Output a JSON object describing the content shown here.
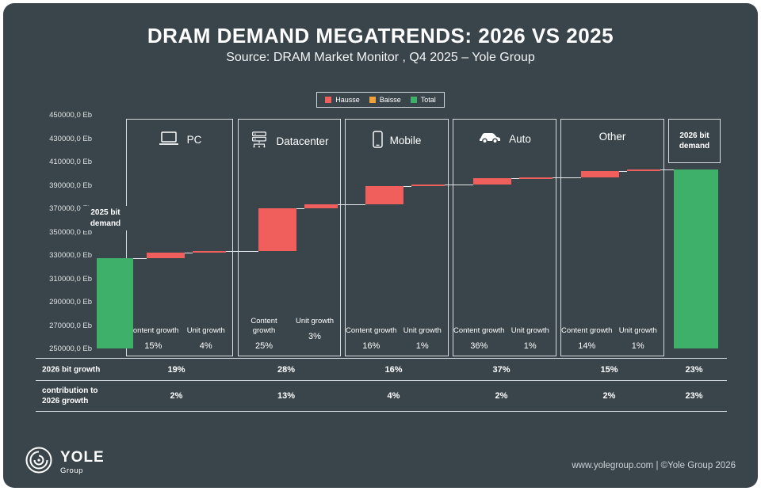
{
  "header": {
    "title": "DRAM DEMAND MEGATRENDS: 2026 VS 2025",
    "subtitle": "Source: DRAM Market Monitor , Q4 2025 – Yole Group"
  },
  "legend": {
    "items": [
      {
        "label": "Hausse",
        "color": "#f15f5c"
      },
      {
        "label": "Baisse",
        "color": "#f0a139"
      },
      {
        "label": "Total",
        "color": "#3eb06a"
      }
    ]
  },
  "chart_data": {
    "type": "waterfall",
    "unit": "Eb",
    "ylim": [
      250000,
      450000
    ],
    "ytick_step": 20000,
    "ytick_labels": [
      "450000,0 Eb",
      "430000,0 Eb",
      "410000,0 Eb",
      "390000,0 Eb",
      "370000,0 Eb",
      "350000,0 Eb",
      "330000,0 Eb",
      "310000,0 Eb",
      "290000,0 Eb",
      "270000,0 Eb",
      "250000,0 Eb"
    ],
    "colors": {
      "hausse": "#f15f5c",
      "baisse": "#f0a139",
      "total": "#3eb06a"
    },
    "start_bar": {
      "label": "2025 bit demand",
      "value_eb": 327000
    },
    "end_bar": {
      "label": "2026 bit demand",
      "value_eb": 403200
    },
    "categories": [
      {
        "name": "PC",
        "icon": "laptop-icon",
        "content_growth": "15%",
        "unit_growth": "4%",
        "content_step": [
          327000,
          332000
        ],
        "unit_step": [
          332000,
          333500
        ]
      },
      {
        "name": "Datacenter",
        "icon": "server-icon",
        "content_growth": "25%",
        "unit_growth": "3%",
        "content_step": [
          333500,
          370000
        ],
        "unit_step": [
          370000,
          373500
        ]
      },
      {
        "name": "Mobile",
        "icon": "smartphone-icon",
        "content_growth": "16%",
        "unit_growth": "1%",
        "content_step": [
          373500,
          389000
        ],
        "unit_step": [
          389000,
          390500
        ]
      },
      {
        "name": "Auto",
        "icon": "car-icon",
        "content_growth": "36%",
        "unit_growth": "1%",
        "content_step": [
          390500,
          395500
        ],
        "unit_step": [
          395500,
          396200
        ]
      },
      {
        "name": "Other",
        "icon": null,
        "content_growth": "14%",
        "unit_growth": "1%",
        "content_step": [
          396200,
          402000
        ],
        "unit_step": [
          402000,
          403200
        ]
      }
    ]
  },
  "labels": {
    "content_growth": "Content growth",
    "unit_growth": "Unit growth"
  },
  "table": {
    "rows": [
      {
        "label": "2026 bit growth",
        "values": [
          "19%",
          "28%",
          "16%",
          "37%",
          "15%",
          "23%"
        ]
      },
      {
        "label": "contribution to 2026 growth",
        "values": [
          "2%",
          "13%",
          "4%",
          "2%",
          "2%",
          "23%"
        ]
      }
    ]
  },
  "footer": {
    "logo_text": "YOLE",
    "logo_subtext": "Group",
    "credit": "www.yolegroup.com | ©Yole Group 2026"
  }
}
